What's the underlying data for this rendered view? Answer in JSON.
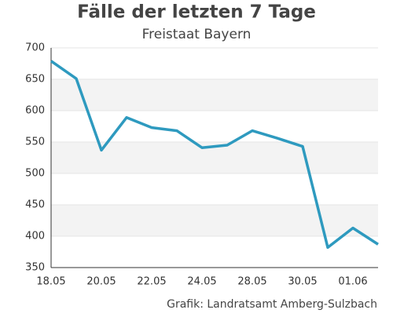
{
  "chart_data": {
    "type": "line",
    "title": "Fälle der letzten 7 Tage",
    "subtitle": "Freistaat Bayern",
    "source": "Grafik: Landratsamt Amberg-Sulzbach",
    "categories": [
      "18.05",
      null,
      "20.05",
      null,
      "22.05",
      null,
      "24.05",
      null,
      "28.05",
      null,
      "30.05",
      null,
      "01.06",
      null
    ],
    "series": [
      {
        "name": "Fälle",
        "color": "#2e9abf",
        "values": [
          679,
          651,
          537,
          589,
          573,
          568,
          541,
          545,
          568,
          556,
          543,
          382,
          413,
          387
        ]
      }
    ],
    "ylim": [
      350,
      700
    ],
    "yticks": [
      350,
      400,
      450,
      500,
      550,
      600,
      650,
      700
    ],
    "grid": true
  }
}
